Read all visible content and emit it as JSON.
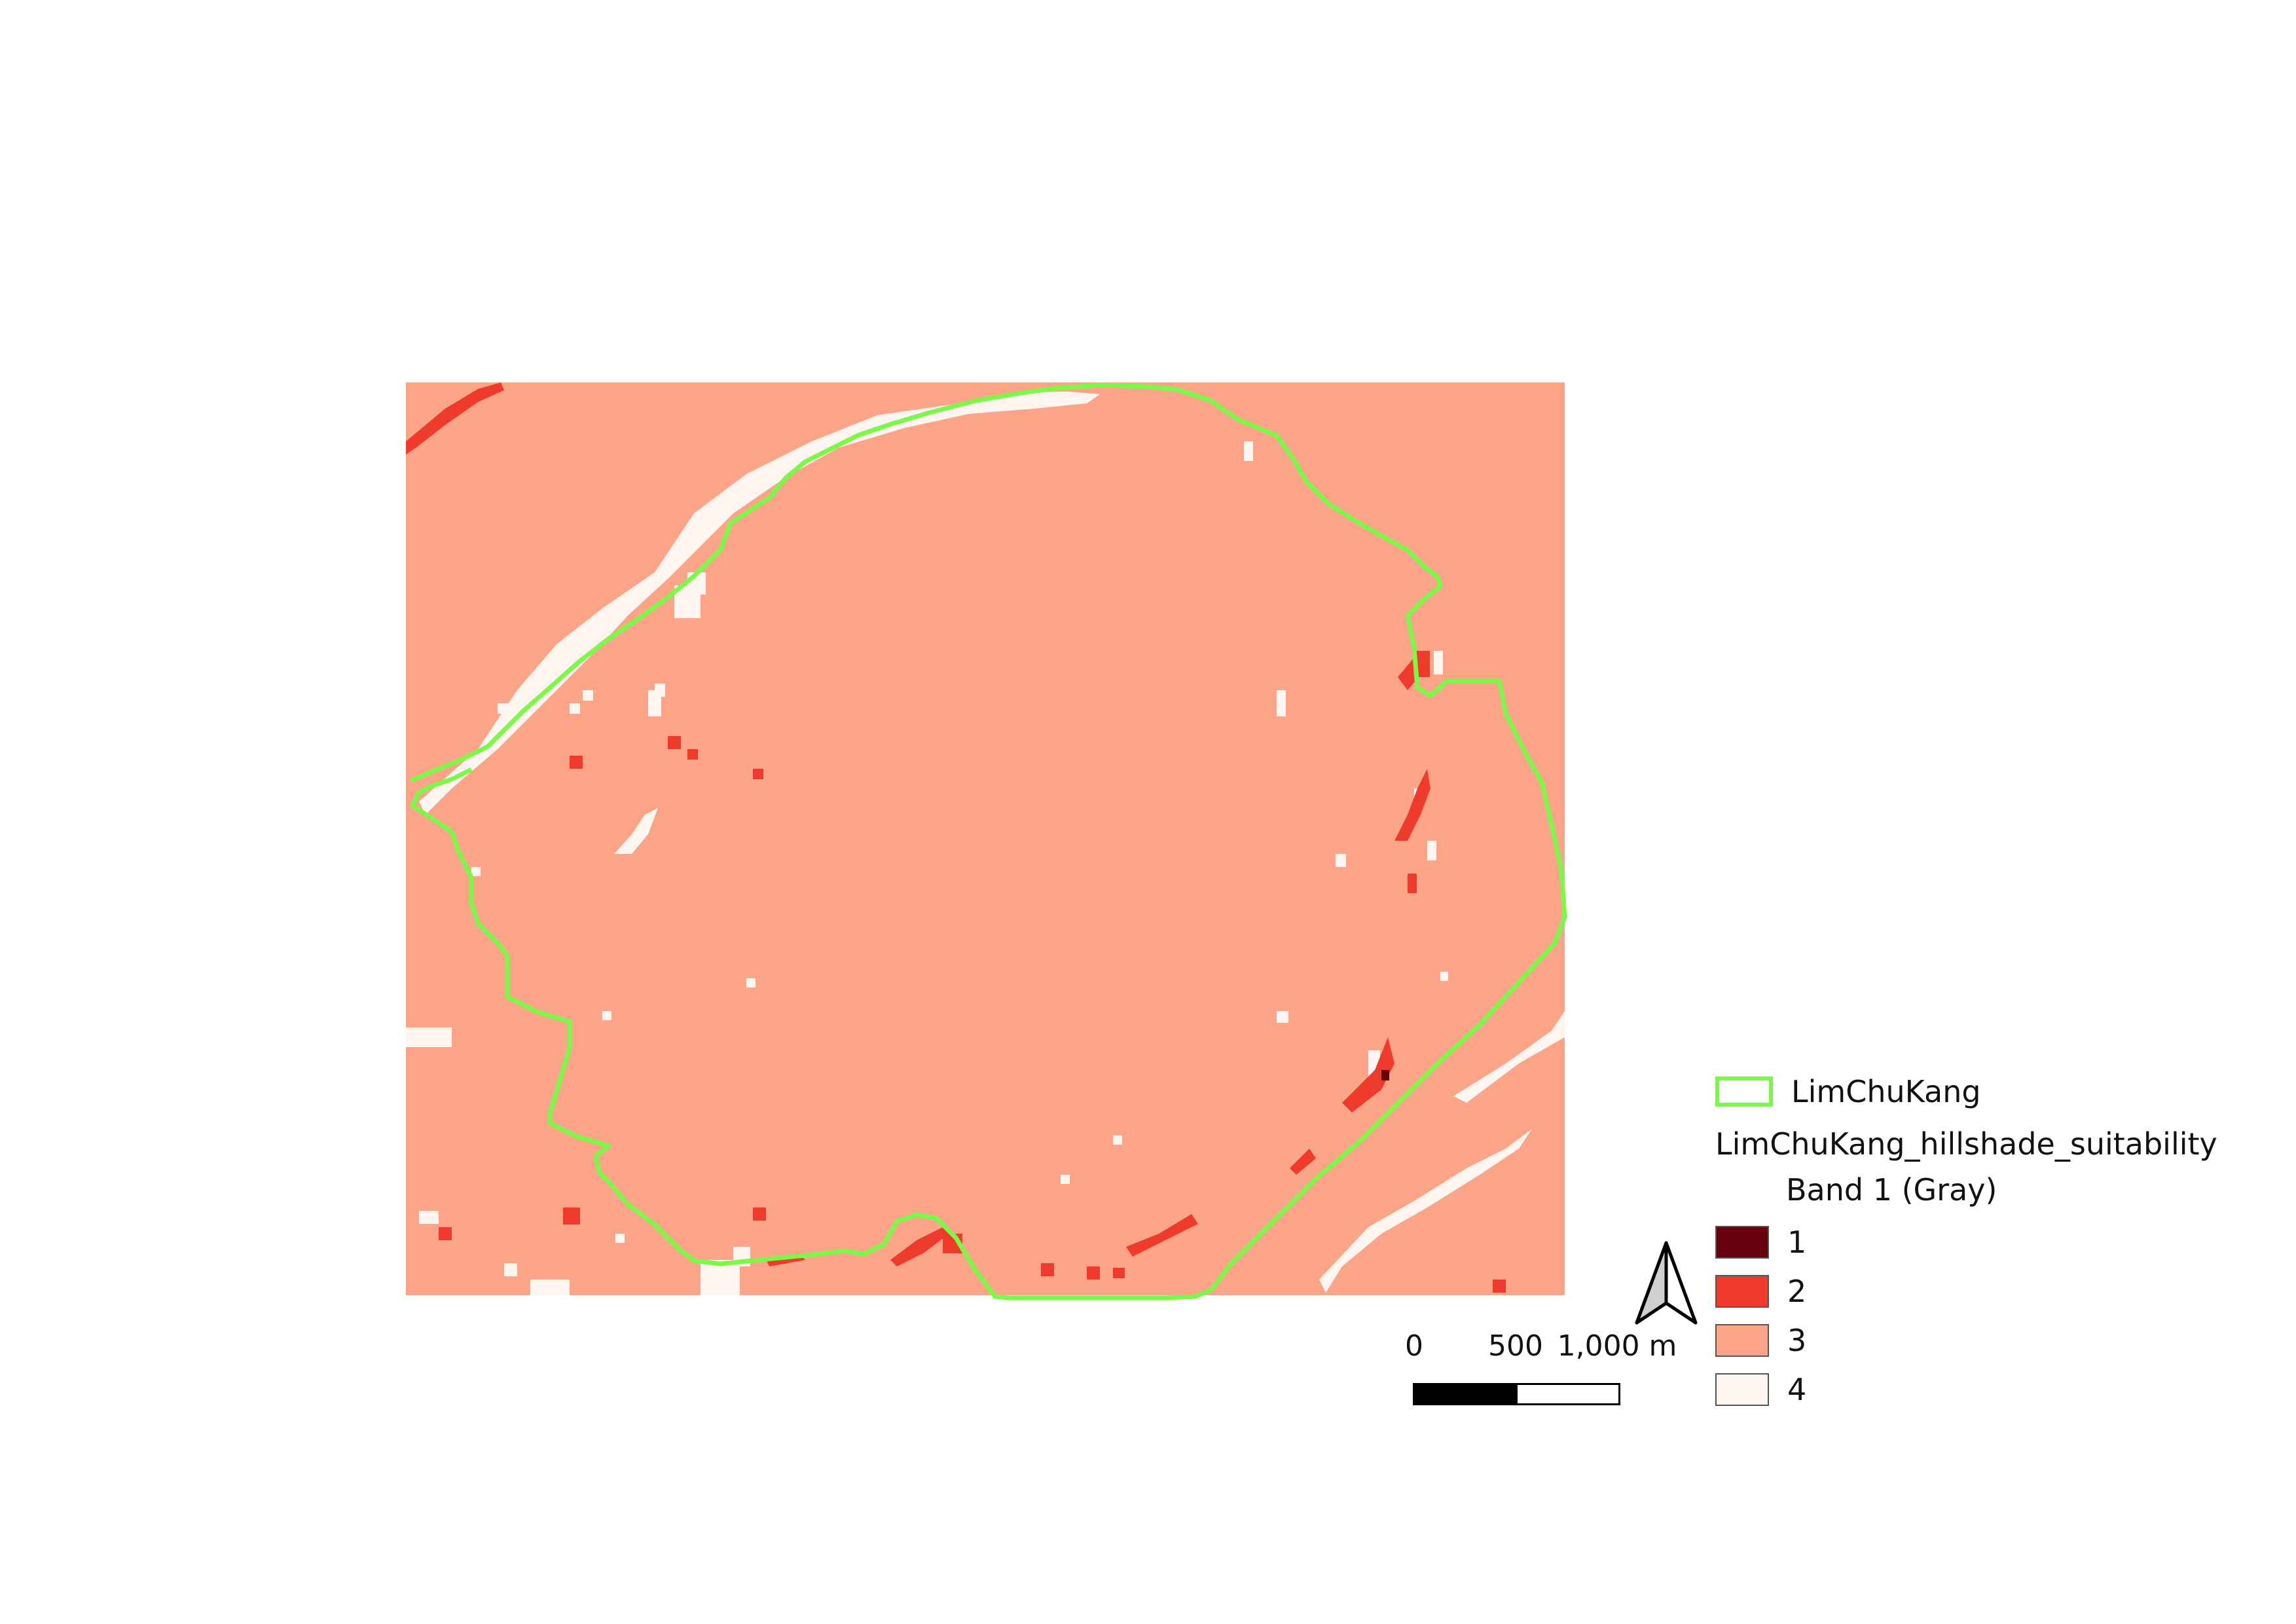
{
  "legend": {
    "boundary_layer": {
      "label": "LimChuKang",
      "color": "#7df74a"
    },
    "raster_layer": {
      "title": "LimChuKang_hillshade_suitability",
      "band": "Band 1 (Gray)",
      "classes": [
        {
          "label": "1",
          "color": "#67000d"
        },
        {
          "label": "2",
          "color": "#ee3b2c"
        },
        {
          "label": "3",
          "color": "#fba487"
        },
        {
          "label": "4",
          "color": "#fff5f0"
        }
      ]
    }
  },
  "scalebar": {
    "labels": [
      "0",
      "500",
      "1,000 m"
    ],
    "unit": "m"
  },
  "north_arrow": {
    "icon": "north-arrow-icon"
  }
}
